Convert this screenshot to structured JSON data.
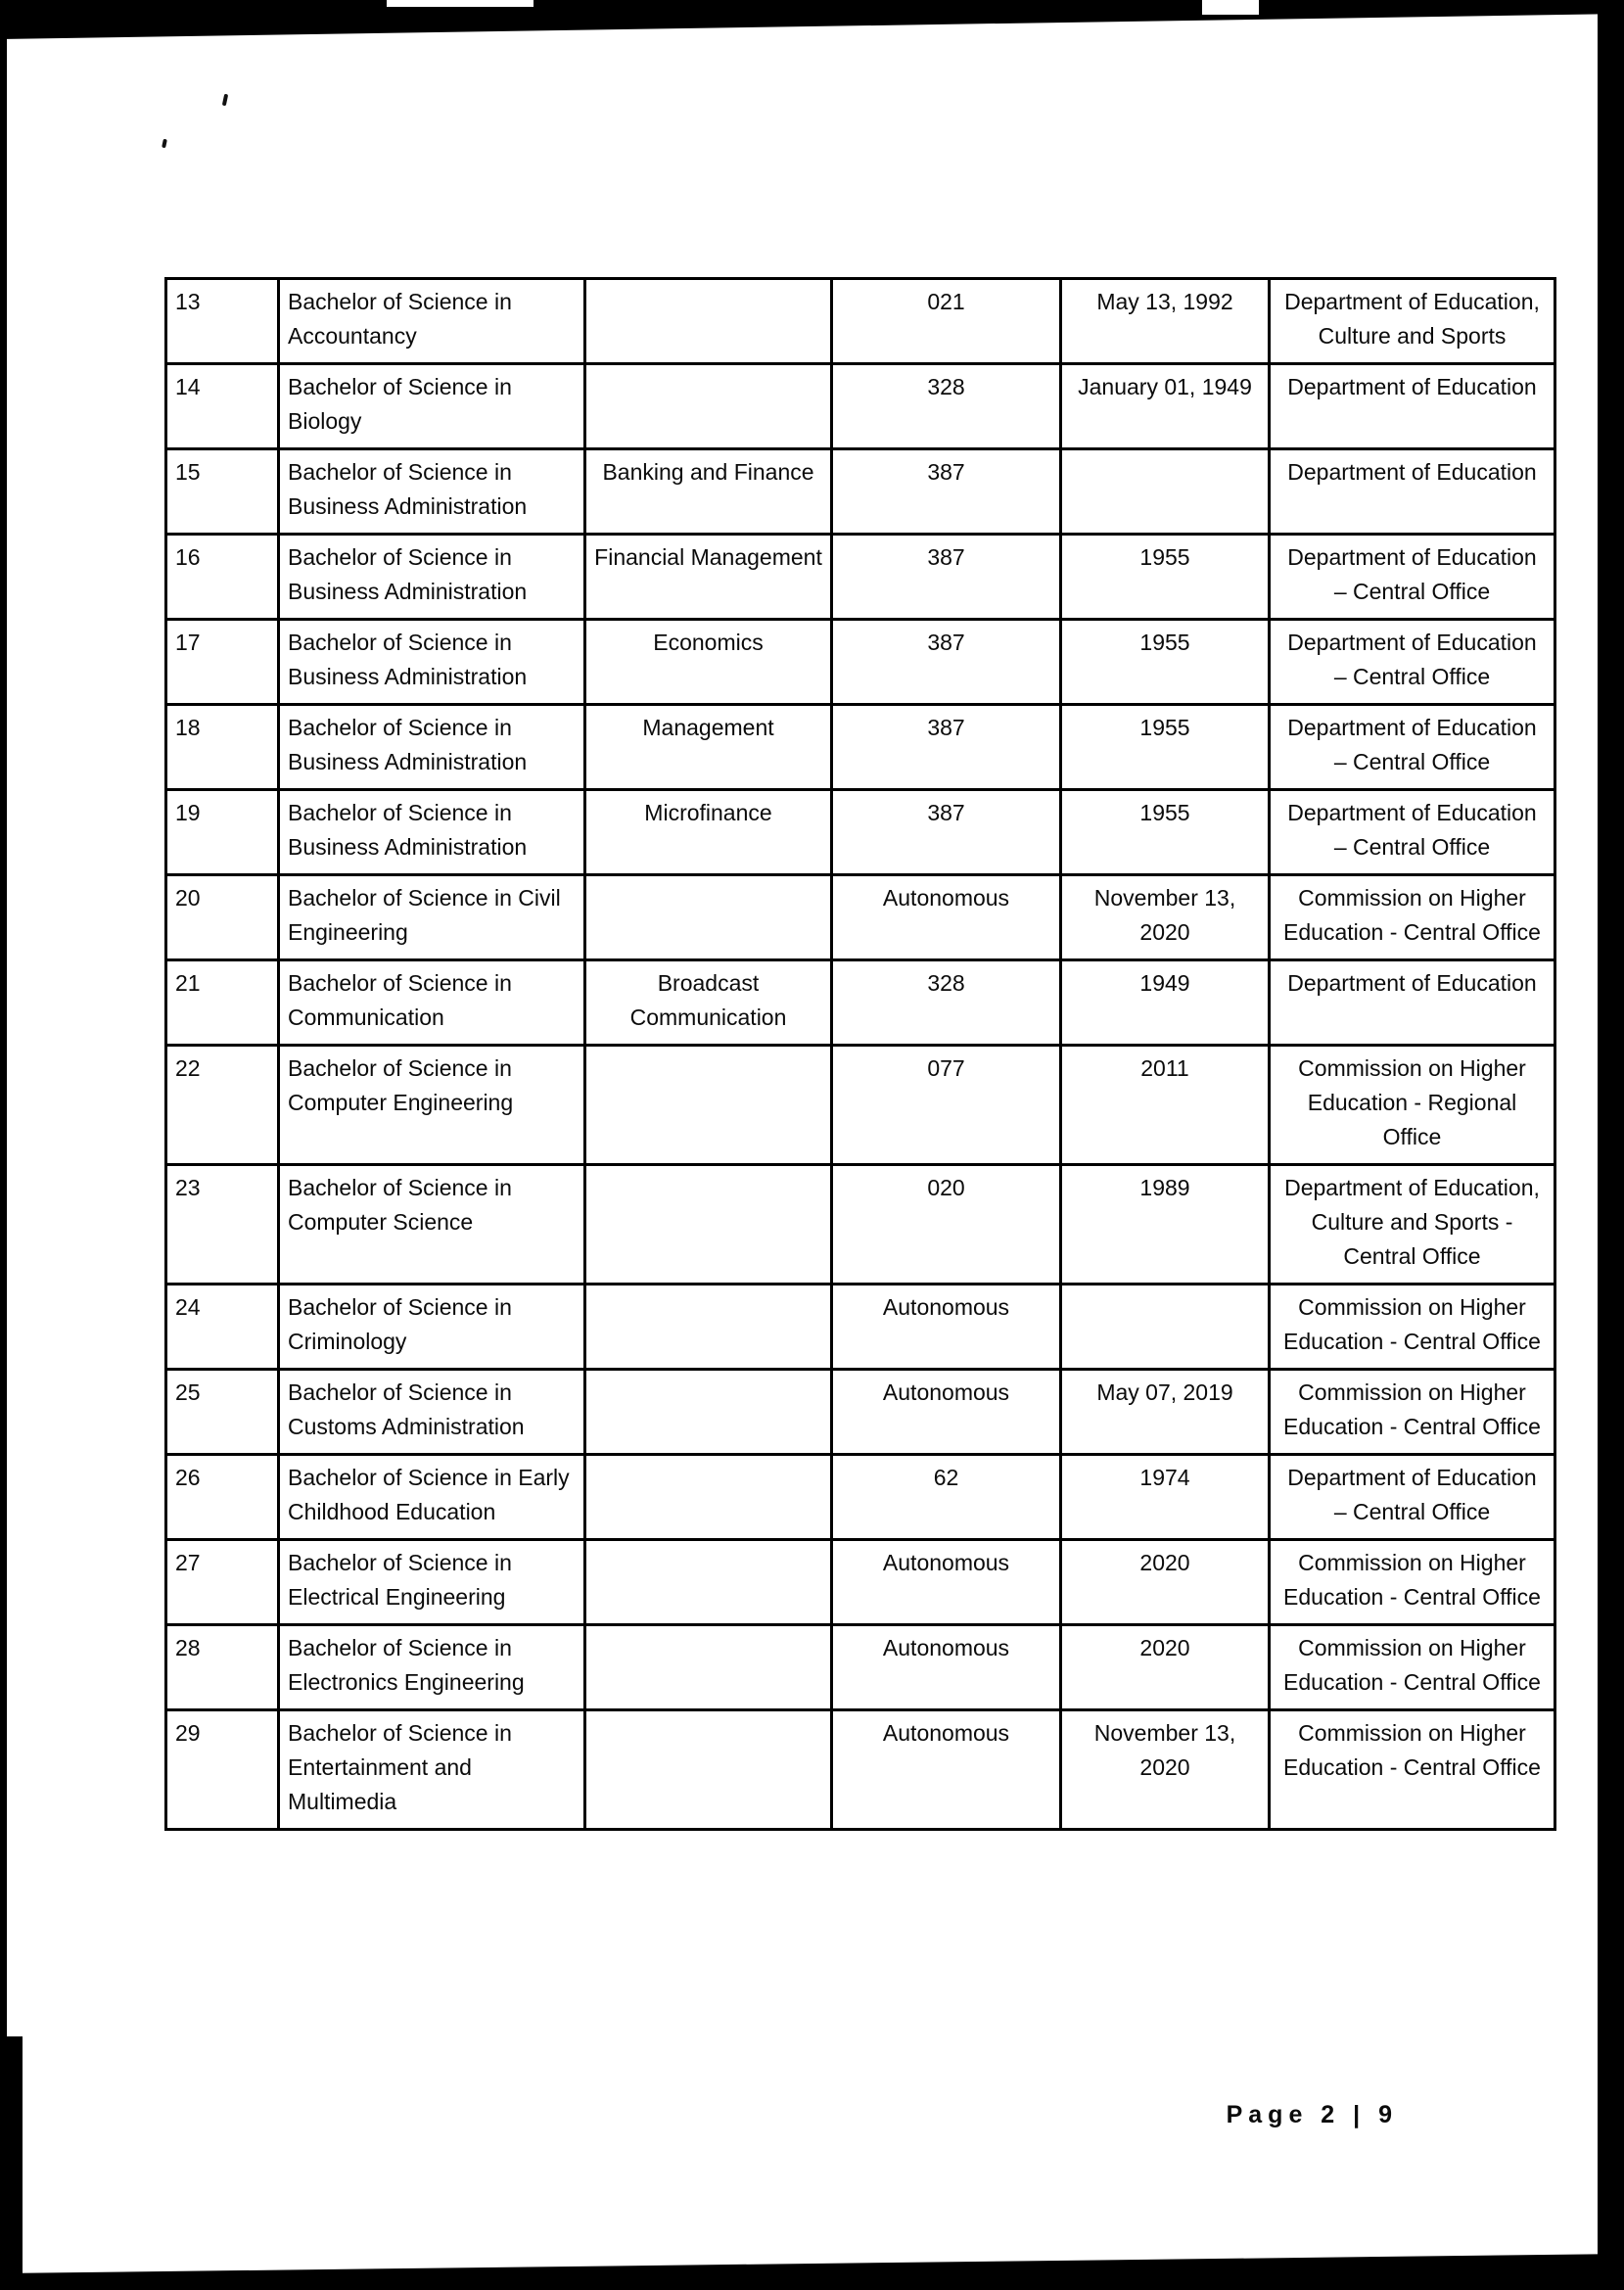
{
  "page": {
    "footer": "Page 2 | 9"
  },
  "table": {
    "rows": [
      {
        "no": "13",
        "program": "Bachelor of Science in Accountancy",
        "major": "",
        "code": "021",
        "date": "May 13, 1992",
        "agency": "Department of Education, Culture and Sports"
      },
      {
        "no": "14",
        "program": "Bachelor of Science in Biology",
        "major": "",
        "code": "328",
        "date": "January 01, 1949",
        "agency": "Department of Education"
      },
      {
        "no": "15",
        "program": "Bachelor of Science in Business Administration",
        "major": "Banking and Finance",
        "code": "387",
        "date": "",
        "agency": "Department of Education"
      },
      {
        "no": "16",
        "program": "Bachelor of Science in Business Administration",
        "major": "Financial Management",
        "code": "387",
        "date": "1955",
        "agency": "Department of Education – Central Office"
      },
      {
        "no": "17",
        "program": "Bachelor of Science in Business Administration",
        "major": "Economics",
        "code": "387",
        "date": "1955",
        "agency": "Department of Education – Central Office"
      },
      {
        "no": "18",
        "program": "Bachelor of Science in Business Administration",
        "major": "Management",
        "code": "387",
        "date": "1955",
        "agency": "Department of Education – Central Office"
      },
      {
        "no": "19",
        "program": "Bachelor of Science in Business Administration",
        "major": "Microfinance",
        "code": "387",
        "date": "1955",
        "agency": "Department of Education – Central Office"
      },
      {
        "no": "20",
        "program": "Bachelor of Science in Civil Engineering",
        "major": "",
        "code": "Autonomous",
        "date": "November 13, 2020",
        "agency": "Commission on Higher Education - Central Office"
      },
      {
        "no": "21",
        "program": "Bachelor of Science in Communication",
        "major": "Broadcast Communication",
        "code": "328",
        "date": "1949",
        "agency": "Department of Education"
      },
      {
        "no": "22",
        "program": "Bachelor of Science in Computer Engineering",
        "major": "",
        "code": "077",
        "date": "2011",
        "agency": "Commission on Higher Education - Regional Office"
      },
      {
        "no": "23",
        "program": "Bachelor of Science in Computer Science",
        "major": "",
        "code": "020",
        "date": "1989",
        "agency": "Department of Education, Culture and Sports - Central Office"
      },
      {
        "no": "24",
        "program": "Bachelor of Science in Criminology",
        "major": "",
        "code": "Autonomous",
        "date": "",
        "agency": "Commission on Higher Education - Central Office"
      },
      {
        "no": "25",
        "program": "Bachelor of Science in Customs Administration",
        "major": "",
        "code": "Autonomous",
        "date": "May 07, 2019",
        "agency": "Commission on Higher Education - Central Office"
      },
      {
        "no": "26",
        "program": "Bachelor of Science in Early Childhood Education",
        "major": "",
        "code": "62",
        "date": "1974",
        "agency": "Department of Education – Central Office"
      },
      {
        "no": "27",
        "program": "Bachelor of Science in Electrical Engineering",
        "major": "",
        "code": "Autonomous",
        "date": "2020",
        "agency": "Commission on Higher Education - Central Office"
      },
      {
        "no": "28",
        "program": "Bachelor of Science in Electronics Engineering",
        "major": "",
        "code": "Autonomous",
        "date": "2020",
        "agency": "Commission on Higher Education - Central Office"
      },
      {
        "no": "29",
        "program": "Bachelor of Science in Entertainment and Multimedia",
        "major": "",
        "code": "Autonomous",
        "date": "November 13, 2020",
        "agency": "Commission on Higher Education - Central Office"
      }
    ]
  }
}
